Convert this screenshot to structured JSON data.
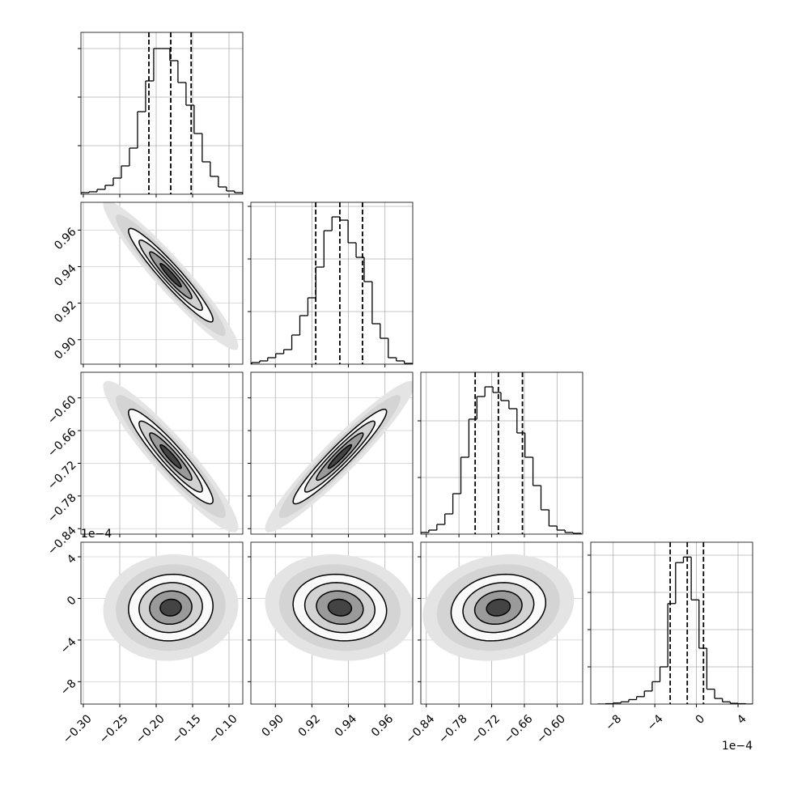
{
  "chart_data": {
    "type": "corner",
    "offset_label": "1e−4",
    "grid": true,
    "params": [
      {
        "xlim": [
          -0.3033,
          -0.0811
        ],
        "ticks": [
          {
            "value": -0.3,
            "label": "−0.30"
          },
          {
            "value": -0.25,
            "label": "−0.25"
          },
          {
            "value": -0.2,
            "label": "−0.20"
          },
          {
            "value": -0.15,
            "label": "−0.15"
          },
          {
            "value": -0.1,
            "label": "−0.10"
          }
        ],
        "quantiles": [
          -0.21,
          -0.18,
          -0.152
        ],
        "hist": {
          "bins": [
            -0.3033,
            -0.2922,
            -0.2811,
            -0.27,
            -0.2589,
            -0.2478,
            -0.2367,
            -0.2256,
            -0.2145,
            -0.2034,
            -0.1923,
            -0.1812,
            -0.1701,
            -0.159,
            -0.1479,
            -0.1368,
            -0.1257,
            -0.1146,
            -0.1035,
            -0.0924,
            -0.0813
          ],
          "counts": [
            33,
            50,
            100,
            183,
            333,
            583,
            950,
            1700,
            2333,
            3000,
            3000,
            2750,
            2300,
            1833,
            1250,
            667,
            367,
            150,
            67,
            33
          ],
          "ylim": [
            0,
            3333
          ],
          "yticks": [
            1000,
            2000,
            3000
          ]
        }
      },
      {
        "xlim": [
          0.8866,
          0.9752
        ],
        "ticks": [
          {
            "value": 0.9,
            "label": "0.90"
          },
          {
            "value": 0.92,
            "label": "0.92"
          },
          {
            "value": 0.94,
            "label": "0.94"
          },
          {
            "value": 0.96,
            "label": "0.96"
          }
        ],
        "quantiles": [
          0.9221,
          0.9353,
          0.9477
        ],
        "hist": {
          "bins": [
            0.887,
            0.8914,
            0.8958,
            0.9002,
            0.9046,
            0.909,
            0.9134,
            0.9178,
            0.9222,
            0.9266,
            0.931,
            0.9354,
            0.9398,
            0.9442,
            0.9486,
            0.953,
            0.9574,
            0.9618,
            0.9662,
            0.9706,
            0.975
          ],
          "counts": [
            31,
            62,
            123,
            200,
            277,
            554,
            923,
            1262,
            1846,
            2538,
            2800,
            2738,
            2308,
            2031,
            1569,
            769,
            492,
            123,
            62,
            15
          ],
          "ylim": [
            0,
            3077
          ],
          "yticks": [
            1000,
            2000,
            3000
          ]
        }
      },
      {
        "xlim": [
          -0.85,
          -0.553
        ],
        "ticks": [
          {
            "value": -0.84,
            "label": "−0.84"
          },
          {
            "value": -0.78,
            "label": "−0.78"
          },
          {
            "value": -0.72,
            "label": "−0.72"
          },
          {
            "value": -0.66,
            "label": "−0.66"
          },
          {
            "value": -0.6,
            "label": "−0.60"
          }
        ],
        "quantiles": [
          -0.7503,
          -0.7077,
          -0.6635
        ],
        "hist": {
          "bins": [
            -0.85,
            -0.8353,
            -0.8206,
            -0.8059,
            -0.7912,
            -0.7765,
            -0.7618,
            -0.7471,
            -0.7324,
            -0.7177,
            -0.703,
            -0.6883,
            -0.6736,
            -0.6589,
            -0.6442,
            -0.6295,
            -0.6148,
            -0.6001,
            -0.5854,
            -0.5707,
            -0.556
          ],
          "counts": [
            29,
            71,
            171,
            357,
            714,
            1357,
            2029,
            2429,
            2600,
            2500,
            2357,
            2214,
            1786,
            1357,
            857,
            429,
            143,
            71,
            29,
            14
          ],
          "ylim": [
            0,
            2857
          ],
          "yticks": [
            1000,
            2000
          ]
        }
      },
      {
        "xlim": [
          -10.15,
          5.4
        ],
        "ticks": [
          {
            "value": -8,
            "label": "−8"
          },
          {
            "value": -4,
            "label": "−4"
          },
          0,
          4
        ],
        "quantiles": [
          -2.52,
          -0.88,
          0.68
        ],
        "hist": {
          "bins": [
            -9.5,
            -8.75,
            -8,
            -7.25,
            -6.5,
            -5.75,
            -5,
            -4.25,
            -3.5,
            -2.75,
            -2,
            -1.25,
            -0.5,
            0.25,
            1,
            1.75,
            2.5,
            3.25,
            4,
            4.75,
            5.5
          ],
          "counts": [
            0,
            10,
            30,
            60,
            120,
            200,
            350,
            600,
            1000,
            2700,
            3800,
            3950,
            2800,
            1500,
            400,
            150,
            60,
            20,
            10,
            0
          ],
          "ylim": [
            0,
            4348
          ],
          "yticks": [
            1000,
            2000,
            3000,
            4000
          ]
        }
      }
    ],
    "correlations": [
      {
        "params": [
          0,
          1
        ],
        "rho": -0.95
      },
      {
        "params": [
          0,
          2
        ],
        "rho": -0.93
      },
      {
        "params": [
          1,
          2
        ],
        "rho": 0.95
      },
      {
        "params": [
          0,
          3
        ],
        "rho": 0.05
      },
      {
        "params": [
          1,
          3
        ],
        "rho": -0.1
      },
      {
        "params": [
          2,
          3
        ],
        "rho": 0.15
      }
    ]
  }
}
